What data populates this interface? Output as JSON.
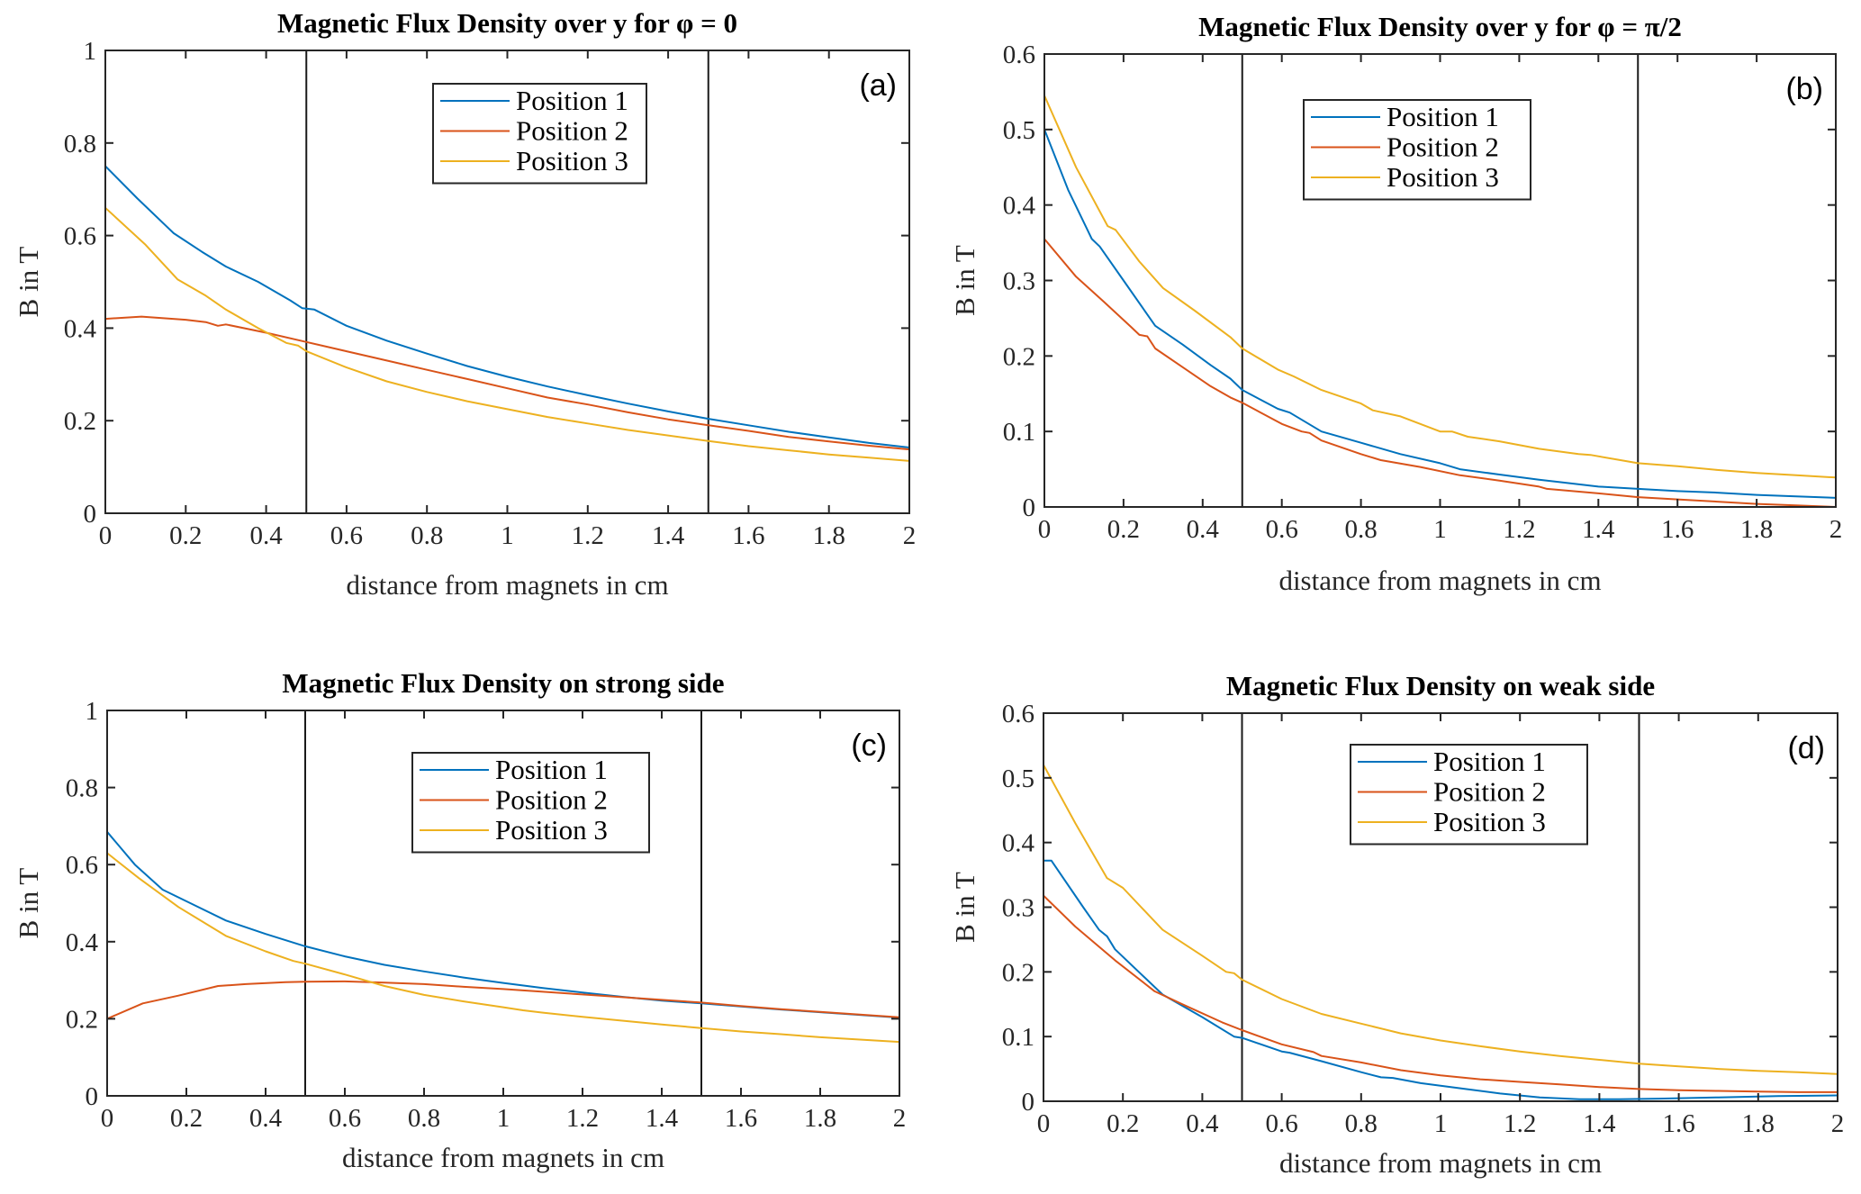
{
  "figure": {
    "series_colors": {
      "Position 1": "#0072BD",
      "Position 2": "#D95319",
      "Position 3": "#EDB120"
    }
  },
  "chart_data": [
    {
      "id": "a",
      "type": "line",
      "panel_label": "(a)",
      "title": "Magnetic Flux Density over y for φ = 0",
      "xlabel": "distance from magnets in cm",
      "ylabel": "B in T",
      "xlim": [
        0,
        2
      ],
      "ylim": [
        0,
        1
      ],
      "xticks": [
        0,
        0.2,
        0.4,
        0.6,
        0.8,
        1,
        1.2,
        1.4,
        1.6,
        1.8,
        2
      ],
      "xtick_labels": [
        "0",
        "0.2",
        "0.4",
        "0.6",
        "0.8",
        "1",
        "1.2",
        "1.4",
        "1.6",
        "1.8",
        "2"
      ],
      "yticks": [
        0,
        0.2,
        0.4,
        0.6,
        0.8,
        1
      ],
      "ytick_labels": [
        "0",
        "0.2",
        "0.4",
        "0.6",
        "0.8",
        "1"
      ],
      "vertical_lines": [
        0.5,
        1.5
      ],
      "grid": false,
      "legend_position": "top-center-right",
      "legend": [
        "Position 1",
        "Position 2",
        "Position 3"
      ],
      "series": [
        {
          "name": "Position 1",
          "color": "#0072BD",
          "x": [
            0,
            0.08,
            0.17,
            0.24,
            0.3,
            0.38,
            0.46,
            0.49,
            0.52,
            0.6,
            0.7,
            0.8,
            0.9,
            1.0,
            1.1,
            1.2,
            1.3,
            1.4,
            1.5,
            1.6,
            1.7,
            1.8,
            1.9,
            2.0
          ],
          "y": [
            0.75,
            0.68,
            0.605,
            0.565,
            0.533,
            0.5,
            0.46,
            0.443,
            0.44,
            0.405,
            0.373,
            0.345,
            0.318,
            0.295,
            0.274,
            0.255,
            0.237,
            0.22,
            0.204,
            0.19,
            0.176,
            0.164,
            0.152,
            0.142
          ]
        },
        {
          "name": "Position 2",
          "color": "#D95319",
          "x": [
            0,
            0.09,
            0.2,
            0.25,
            0.28,
            0.3,
            0.4,
            0.5,
            0.6,
            0.7,
            0.8,
            0.9,
            1.0,
            1.1,
            1.2,
            1.3,
            1.4,
            1.5,
            1.6,
            1.7,
            1.8,
            1.9,
            2.0
          ],
          "y": [
            0.42,
            0.425,
            0.418,
            0.413,
            0.405,
            0.408,
            0.39,
            0.37,
            0.35,
            0.33,
            0.31,
            0.29,
            0.27,
            0.25,
            0.235,
            0.218,
            0.203,
            0.19,
            0.178,
            0.165,
            0.155,
            0.146,
            0.138
          ]
        },
        {
          "name": "Position 3",
          "color": "#EDB120",
          "x": [
            0,
            0.1,
            0.18,
            0.25,
            0.3,
            0.38,
            0.45,
            0.48,
            0.5,
            0.6,
            0.7,
            0.8,
            0.9,
            1.0,
            1.1,
            1.2,
            1.3,
            1.4,
            1.5,
            1.6,
            1.7,
            1.8,
            1.9,
            2.0
          ],
          "y": [
            0.66,
            0.58,
            0.505,
            0.47,
            0.44,
            0.4,
            0.368,
            0.362,
            0.35,
            0.315,
            0.285,
            0.262,
            0.242,
            0.225,
            0.208,
            0.194,
            0.18,
            0.168,
            0.156,
            0.145,
            0.136,
            0.127,
            0.12,
            0.113
          ]
        }
      ]
    },
    {
      "id": "b",
      "type": "line",
      "panel_label": "(b)",
      "title": "Magnetic Flux Density over y for φ = π/2",
      "xlabel": "distance from magnets in cm",
      "ylabel": "B in T",
      "xlim": [
        0,
        2
      ],
      "ylim": [
        0,
        0.6
      ],
      "xticks": [
        0,
        0.2,
        0.4,
        0.6,
        0.8,
        1,
        1.2,
        1.4,
        1.6,
        1.8,
        2
      ],
      "xtick_labels": [
        "0",
        "0.2",
        "0.4",
        "0.6",
        "0.8",
        "1",
        "1.2",
        "1.4",
        "1.6",
        "1.8",
        "2"
      ],
      "yticks": [
        0,
        0.1,
        0.2,
        0.3,
        0.4,
        0.5,
        0.6
      ],
      "ytick_labels": [
        "0",
        "0.1",
        "0.2",
        "0.3",
        "0.4",
        "0.5",
        "0.6"
      ],
      "vertical_lines": [
        0.5,
        1.5
      ],
      "grid": false,
      "legend_position": "top-center",
      "legend": [
        "Position 1",
        "Position 2",
        "Position 3"
      ],
      "series": [
        {
          "name": "Position 1",
          "color": "#0072BD",
          "x": [
            0,
            0.06,
            0.12,
            0.14,
            0.2,
            0.28,
            0.35,
            0.42,
            0.47,
            0.5,
            0.59,
            0.62,
            0.7,
            0.8,
            0.9,
            1.0,
            1.05,
            1.15,
            1.25,
            1.3,
            1.4,
            1.5,
            1.6,
            1.7,
            1.8,
            1.9,
            2.0
          ],
          "y": [
            0.5,
            0.42,
            0.355,
            0.345,
            0.3,
            0.24,
            0.215,
            0.188,
            0.17,
            0.155,
            0.13,
            0.125,
            0.1,
            0.085,
            0.07,
            0.058,
            0.05,
            0.043,
            0.036,
            0.033,
            0.027,
            0.024,
            0.021,
            0.019,
            0.016,
            0.014,
            0.012
          ]
        },
        {
          "name": "Position 2",
          "color": "#D95319",
          "x": [
            0,
            0.08,
            0.15,
            0.22,
            0.24,
            0.26,
            0.28,
            0.35,
            0.42,
            0.47,
            0.5,
            0.6,
            0.65,
            0.67,
            0.7,
            0.8,
            0.85,
            0.95,
            1.05,
            1.15,
            1.25,
            1.27,
            1.4,
            1.5,
            1.6,
            1.7,
            1.8,
            1.9,
            2.0
          ],
          "y": [
            0.355,
            0.305,
            0.272,
            0.238,
            0.228,
            0.226,
            0.21,
            0.185,
            0.16,
            0.145,
            0.138,
            0.11,
            0.1,
            0.098,
            0.088,
            0.07,
            0.062,
            0.053,
            0.042,
            0.035,
            0.027,
            0.024,
            0.018,
            0.013,
            0.01,
            0.007,
            0.004,
            0.002,
            0.0
          ]
        },
        {
          "name": "Position 3",
          "color": "#EDB120",
          "x": [
            0,
            0.08,
            0.16,
            0.18,
            0.24,
            0.3,
            0.38,
            0.47,
            0.5,
            0.59,
            0.63,
            0.7,
            0.8,
            0.83,
            0.9,
            1.0,
            1.03,
            1.07,
            1.15,
            1.25,
            1.35,
            1.38,
            1.5,
            1.6,
            1.7,
            1.8,
            1.9,
            2.0
          ],
          "y": [
            0.545,
            0.45,
            0.372,
            0.367,
            0.325,
            0.29,
            0.26,
            0.225,
            0.21,
            0.182,
            0.173,
            0.155,
            0.137,
            0.128,
            0.12,
            0.1,
            0.1,
            0.093,
            0.087,
            0.077,
            0.07,
            0.069,
            0.058,
            0.054,
            0.049,
            0.045,
            0.042,
            0.039
          ]
        }
      ]
    },
    {
      "id": "c",
      "type": "line",
      "panel_label": "(c)",
      "title": "Magnetic Flux Density on strong side",
      "xlabel": "distance from magnets in cm",
      "ylabel": "B in T",
      "xlim": [
        0,
        2
      ],
      "ylim": [
        0,
        1
      ],
      "xticks": [
        0,
        0.2,
        0.4,
        0.6,
        0.8,
        1,
        1.2,
        1.4,
        1.6,
        1.8,
        2
      ],
      "xtick_labels": [
        "0",
        "0.2",
        "0.4",
        "0.6",
        "0.8",
        "1",
        "1.2",
        "1.4",
        "1.6",
        "1.8",
        "2"
      ],
      "yticks": [
        0,
        0.2,
        0.4,
        0.6,
        0.8,
        1
      ],
      "ytick_labels": [
        "0",
        "0.2",
        "0.4",
        "0.6",
        "0.8",
        "1"
      ],
      "vertical_lines": [
        0.5,
        1.5
      ],
      "grid": false,
      "legend_position": "top-center-right",
      "legend": [
        "Position 1",
        "Position 2",
        "Position 3"
      ],
      "series": [
        {
          "name": "Position 1",
          "color": "#0072BD",
          "x": [
            0,
            0.07,
            0.14,
            0.2,
            0.3,
            0.4,
            0.5,
            0.6,
            0.7,
            0.8,
            0.9,
            1.0,
            1.1,
            1.2,
            1.3,
            1.4,
            1.5,
            1.6,
            1.7,
            1.8,
            1.9,
            2.0
          ],
          "y": [
            0.685,
            0.6,
            0.535,
            0.505,
            0.455,
            0.42,
            0.388,
            0.362,
            0.34,
            0.323,
            0.307,
            0.293,
            0.28,
            0.268,
            0.257,
            0.247,
            0.24,
            0.232,
            0.224,
            0.217,
            0.21,
            0.203
          ]
        },
        {
          "name": "Position 2",
          "color": "#D95319",
          "x": [
            0,
            0.09,
            0.18,
            0.28,
            0.35,
            0.45,
            0.5,
            0.6,
            0.7,
            0.8,
            0.9,
            1.0,
            1.1,
            1.2,
            1.3,
            1.4,
            1.5,
            1.6,
            1.7,
            1.8,
            1.9,
            2.0
          ],
          "y": [
            0.2,
            0.24,
            0.26,
            0.285,
            0.29,
            0.295,
            0.296,
            0.297,
            0.294,
            0.29,
            0.283,
            0.277,
            0.27,
            0.263,
            0.256,
            0.249,
            0.242,
            0.233,
            0.225,
            0.218,
            0.211,
            0.204
          ]
        },
        {
          "name": "Position 3",
          "color": "#EDB120",
          "x": [
            0,
            0.08,
            0.18,
            0.3,
            0.4,
            0.47,
            0.5,
            0.6,
            0.7,
            0.8,
            0.9,
            1.0,
            1.05,
            1.1,
            1.2,
            1.3,
            1.4,
            1.5,
            1.6,
            1.7,
            1.8,
            1.9,
            2.0
          ],
          "y": [
            0.63,
            0.565,
            0.49,
            0.415,
            0.375,
            0.35,
            0.343,
            0.315,
            0.285,
            0.262,
            0.245,
            0.23,
            0.222,
            0.216,
            0.205,
            0.195,
            0.185,
            0.176,
            0.167,
            0.16,
            0.152,
            0.146,
            0.14
          ]
        }
      ]
    },
    {
      "id": "d",
      "type": "line",
      "panel_label": "(d)",
      "title": "Magnetic Flux Density on weak side",
      "xlabel": "distance from magnets in cm",
      "ylabel": "B in T",
      "xlim": [
        0,
        2
      ],
      "ylim": [
        0,
        0.6
      ],
      "xticks": [
        0,
        0.2,
        0.4,
        0.6,
        0.8,
        1,
        1.2,
        1.4,
        1.6,
        1.8,
        2
      ],
      "xtick_labels": [
        "0",
        "0.2",
        "0.4",
        "0.6",
        "0.8",
        "1",
        "1.2",
        "1.4",
        "1.6",
        "1.8",
        "2"
      ],
      "yticks": [
        0,
        0.1,
        0.2,
        0.3,
        0.4,
        0.5,
        0.6
      ],
      "ytick_labels": [
        "0",
        "0.1",
        "0.2",
        "0.3",
        "0.4",
        "0.5",
        "0.6"
      ],
      "vertical_lines": [
        0.5,
        1.5
      ],
      "grid": false,
      "legend_position": "top-center-right",
      "legend": [
        "Position 1",
        "Position 2",
        "Position 3"
      ],
      "series": [
        {
          "name": "Position 1",
          "color": "#0072BD",
          "x": [
            0,
            0.02,
            0.1,
            0.14,
            0.16,
            0.18,
            0.3,
            0.4,
            0.48,
            0.5,
            0.6,
            0.62,
            0.7,
            0.8,
            0.85,
            0.88,
            0.95,
            1.05,
            1.15,
            1.25,
            1.35,
            1.45,
            1.55,
            1.7,
            1.85,
            2.0
          ],
          "y": [
            0.372,
            0.372,
            0.3,
            0.265,
            0.255,
            0.235,
            0.165,
            0.13,
            0.1,
            0.098,
            0.077,
            0.075,
            0.062,
            0.045,
            0.037,
            0.036,
            0.028,
            0.02,
            0.012,
            0.006,
            0.003,
            0.003,
            0.004,
            0.006,
            0.008,
            0.009
          ]
        },
        {
          "name": "Position 2",
          "color": "#D95319",
          "x": [
            0,
            0.08,
            0.18,
            0.28,
            0.35,
            0.45,
            0.5,
            0.6,
            0.68,
            0.7,
            0.8,
            0.9,
            1.0,
            1.1,
            1.2,
            1.3,
            1.4,
            1.5,
            1.6,
            1.7,
            1.8,
            1.9,
            2.0
          ],
          "y": [
            0.318,
            0.27,
            0.218,
            0.17,
            0.15,
            0.122,
            0.11,
            0.088,
            0.076,
            0.07,
            0.06,
            0.048,
            0.04,
            0.034,
            0.03,
            0.026,
            0.022,
            0.019,
            0.017,
            0.016,
            0.015,
            0.014,
            0.014
          ]
        },
        {
          "name": "Position 3",
          "color": "#EDB120",
          "x": [
            0,
            0.08,
            0.16,
            0.2,
            0.3,
            0.4,
            0.46,
            0.48,
            0.5,
            0.6,
            0.7,
            0.8,
            0.9,
            1.0,
            1.1,
            1.2,
            1.3,
            1.4,
            1.5,
            1.6,
            1.7,
            1.8,
            1.9,
            2.0
          ],
          "y": [
            0.52,
            0.43,
            0.345,
            0.33,
            0.265,
            0.225,
            0.2,
            0.198,
            0.188,
            0.158,
            0.135,
            0.12,
            0.105,
            0.094,
            0.085,
            0.077,
            0.07,
            0.064,
            0.058,
            0.054,
            0.05,
            0.047,
            0.045,
            0.042
          ]
        }
      ]
    }
  ]
}
